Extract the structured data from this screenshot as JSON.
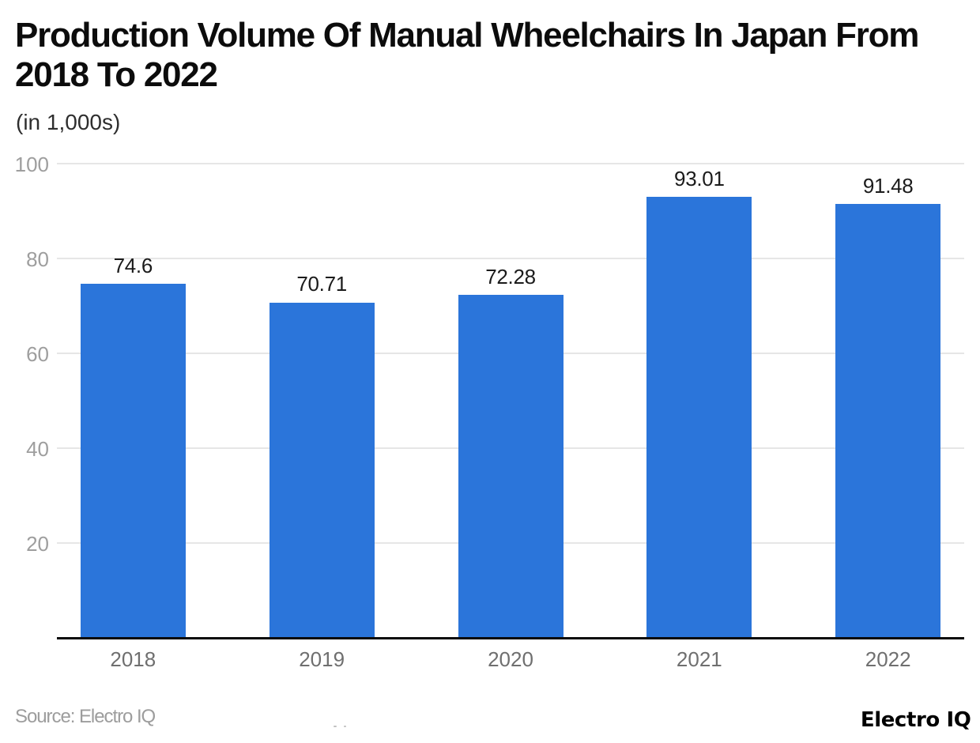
{
  "chart_data": {
    "type": "bar",
    "title": "Production Volume Of Manual Wheelchairs In Japan From 2018 To 2022",
    "subtitle": "(in 1,000s)",
    "categories": [
      "2018",
      "2019",
      "2020",
      "2021",
      "2022"
    ],
    "values": [
      74.6,
      70.71,
      72.28,
      93.01,
      91.48
    ],
    "value_labels": [
      "74.6",
      "70.71",
      "72.28",
      "93.01",
      "91.48"
    ],
    "xlabel": "",
    "ylabel": "",
    "ylim": [
      0,
      100
    ],
    "yticks": [
      20,
      40,
      60,
      80,
      100
    ],
    "grid": "horizontal-only",
    "legend": "none",
    "bar_color": "#2b75da"
  },
  "footer": {
    "source": "Source: Electro IQ",
    "logo": "Electro IQ"
  },
  "colors": {
    "bar": "#2b75da",
    "grid": "#e6e6e6",
    "axis": "#0a0a0a",
    "ytick_label": "#9e9e9e",
    "xtick_label": "#6f6f6f",
    "value_label": "#1b1b1b",
    "title": "#0c0c0c",
    "subtitle": "#2e2e2e",
    "source": "#9d9d9d",
    "logo": "#000000",
    "background": "#ffffff"
  }
}
